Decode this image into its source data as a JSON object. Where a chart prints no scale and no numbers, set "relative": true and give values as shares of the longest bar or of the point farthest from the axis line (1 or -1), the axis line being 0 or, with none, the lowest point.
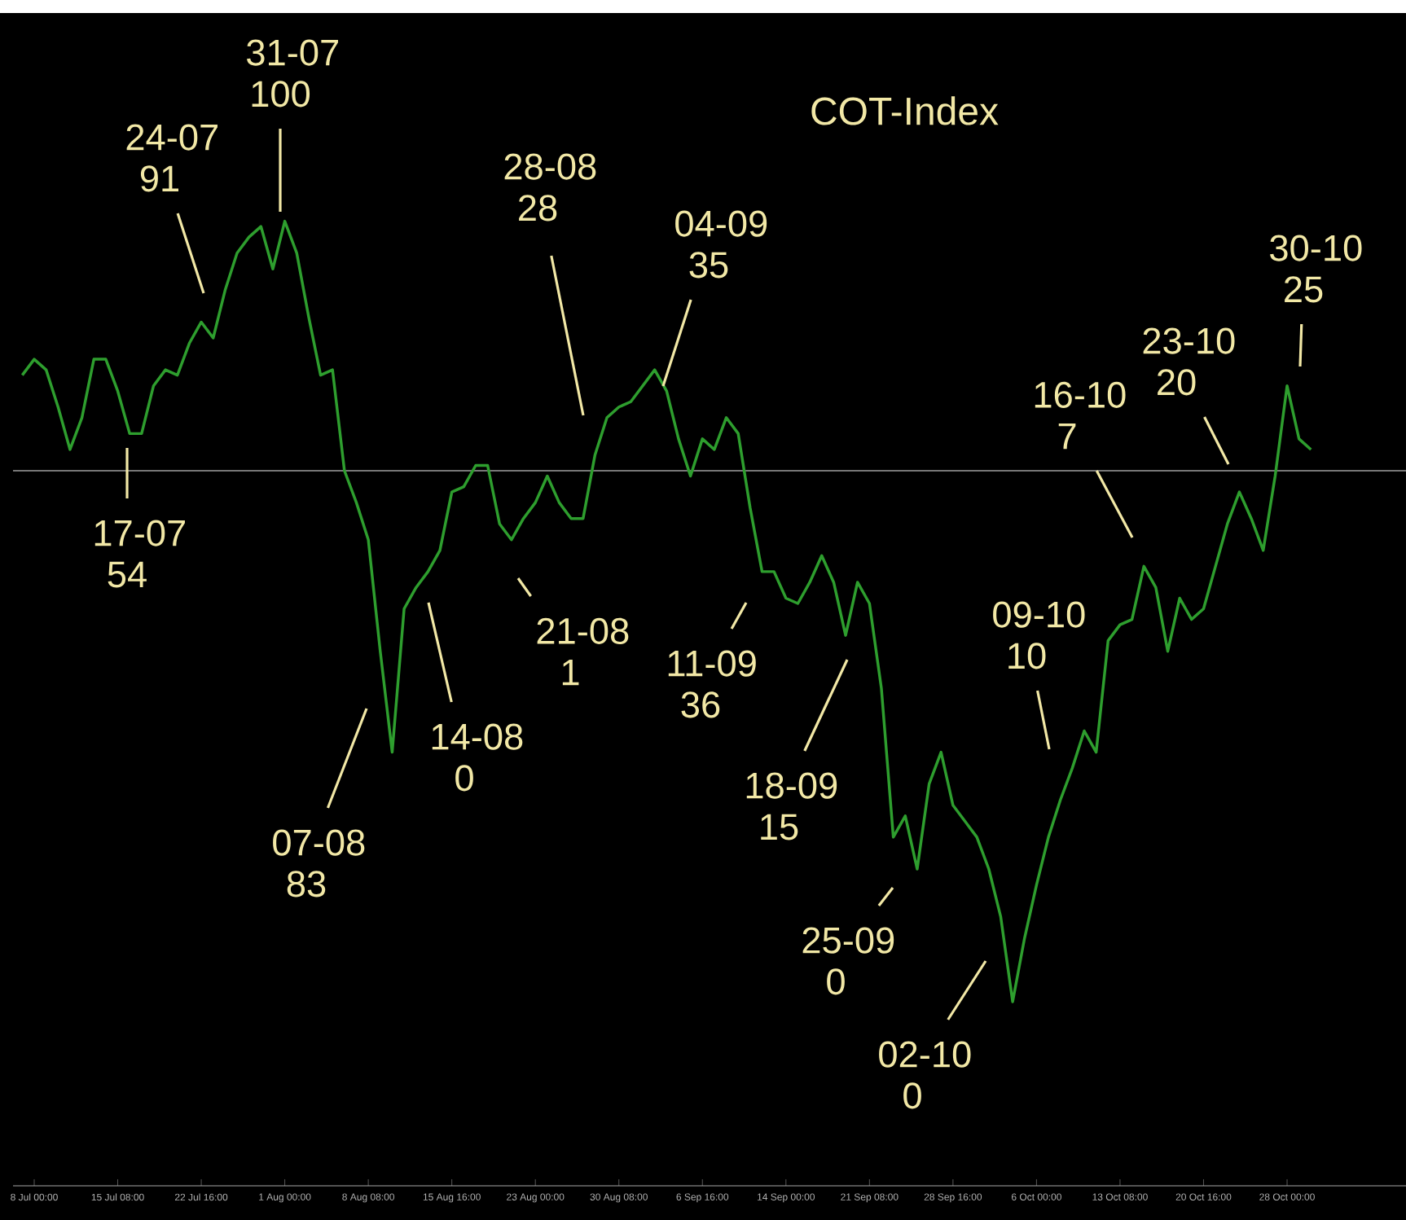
{
  "chart_data": {
    "type": "line",
    "title": "COT-Index",
    "relative": true,
    "marker": "none",
    "line_style": "solid",
    "grid": false,
    "categories": [
      null,
      "8 Jul 00:00",
      null,
      null,
      null,
      null,
      null,
      null,
      "15 Jul 08:00",
      null,
      null,
      null,
      null,
      null,
      null,
      "22 Jul 16:00",
      null,
      null,
      null,
      null,
      null,
      null,
      "1 Aug 00:00",
      null,
      null,
      null,
      null,
      null,
      null,
      "8 Aug 08:00",
      null,
      null,
      null,
      null,
      null,
      null,
      "15 Aug 16:00",
      null,
      null,
      null,
      null,
      null,
      null,
      "23 Aug 00:00",
      null,
      null,
      null,
      null,
      null,
      null,
      "30 Aug 08:00",
      null,
      null,
      null,
      null,
      null,
      null,
      "6 Sep 16:00",
      null,
      null,
      null,
      null,
      null,
      null,
      "14 Sep 00:00",
      null,
      null,
      null,
      null,
      null,
      null,
      "21 Sep 08:00",
      null,
      null,
      null,
      null,
      null,
      null,
      "28 Sep 16:00",
      null,
      null,
      null,
      null,
      null,
      null,
      "6 Oct 00:00",
      null,
      null,
      null,
      null,
      null,
      null,
      "13 Oct 08:00",
      null,
      null,
      null,
      null,
      null,
      null,
      "20 Oct 16:00",
      null,
      null,
      null,
      null,
      null,
      null,
      "28 Oct 00:00",
      null,
      null
    ],
    "series": [
      {
        "color": "#2e9e2e",
        "values": [
          0.18,
          0.21,
          0.19,
          0.12,
          0.04,
          0.1,
          0.21,
          0.21,
          0.15,
          0.07,
          0.07,
          0.16,
          0.19,
          0.18,
          0.24,
          0.28,
          0.25,
          0.34,
          0.41,
          0.44,
          0.46,
          0.38,
          0.47,
          0.41,
          0.29,
          0.18,
          0.19,
          0.0,
          -0.06,
          -0.13,
          -0.34,
          -0.53,
          -0.26,
          -0.22,
          -0.19,
          -0.15,
          -0.04,
          -0.03,
          0.01,
          0.01,
          -0.1,
          -0.13,
          -0.09,
          -0.06,
          -0.01,
          -0.06,
          -0.09,
          -0.09,
          0.03,
          0.1,
          0.12,
          0.13,
          0.16,
          0.19,
          0.15,
          0.06,
          -0.01,
          0.06,
          0.04,
          0.1,
          0.07,
          -0.07,
          -0.19,
          -0.19,
          -0.24,
          -0.25,
          -0.21,
          -0.16,
          -0.21,
          -0.31,
          -0.21,
          -0.25,
          -0.41,
          -0.69,
          -0.65,
          -0.75,
          -0.59,
          -0.53,
          -0.63,
          -0.66,
          -0.69,
          -0.75,
          -0.84,
          -1.0,
          -0.88,
          -0.78,
          -0.69,
          -0.62,
          -0.56,
          -0.49,
          -0.53,
          -0.32,
          -0.29,
          -0.28,
          -0.18,
          -0.22,
          -0.34,
          -0.24,
          -0.28,
          -0.26,
          -0.18,
          -0.1,
          -0.04,
          -0.09,
          -0.15,
          -0.01,
          0.16,
          0.06,
          0.04
        ]
      }
    ],
    "annotations": [
      "17-07 54",
      "24-07 91",
      "31-07 100",
      "07-08 83",
      "14-08 0",
      "21-08 1",
      "28-08 28",
      "04-09 35",
      "11-09 36",
      "18-09 15",
      "25-09 0",
      "02-10 0",
      "09-10 10",
      "16-10 7",
      "23-10 20",
      "30-10 25"
    ]
  }
}
